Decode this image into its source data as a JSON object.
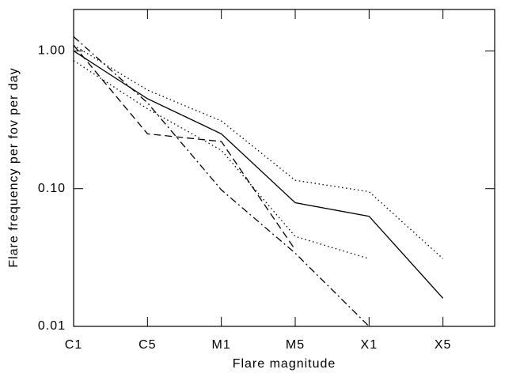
{
  "chart_data": {
    "type": "line",
    "x_label": "Flare magnitude",
    "y_label": "Flare frequency per fov per day",
    "categories": [
      "C1",
      "C5",
      "M1",
      "M5",
      "X1",
      "X5"
    ],
    "xlim": [
      0,
      5.7
    ],
    "ylim": [
      0.01,
      2
    ],
    "yscale": "log",
    "yticks": [
      {
        "value": 0.01,
        "label": "0.01"
      },
      {
        "value": 0.1,
        "label": "0.10"
      },
      {
        "value": 1,
        "label": "1.00"
      }
    ],
    "series": [
      {
        "color": "#000000",
        "dash": "solid",
        "values": [
          1.0,
          0.45,
          0.25,
          0.079,
          0.063,
          0.016
        ]
      },
      {
        "color": "#000000",
        "dash": "dotted",
        "values": [
          1.1,
          0.52,
          0.31,
          0.115,
          0.095,
          0.031
        ]
      },
      {
        "color": "#000000",
        "dash": "dotted",
        "values": [
          0.85,
          0.38,
          0.19,
          0.045,
          0.031,
          null
        ]
      },
      {
        "color": "#000000",
        "dash": "dashed",
        "values": [
          1.1,
          0.25,
          0.22,
          0.036,
          null,
          null
        ]
      },
      {
        "color": "#000000",
        "dash": "dashdot",
        "values": [
          1.27,
          0.42,
          0.098,
          0.034,
          0.01,
          null
        ]
      }
    ]
  }
}
